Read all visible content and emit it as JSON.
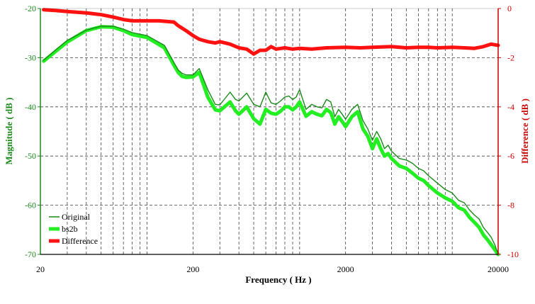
{
  "colors": {
    "original": "#1a8a1a",
    "bs2b": "#22ee22",
    "difference": "#ff1111",
    "left_axis": "#1a8a1a",
    "right_axis": "#cc0000",
    "grid": "#000000"
  },
  "chart_data": {
    "type": "line",
    "xlabel": "Frequency ( Hz )",
    "ylabel_left": "Magnitude ( dB )",
    "ylabel_right": "Difference ( dB )",
    "x_scale": "log",
    "xlim": [
      20,
      20000
    ],
    "ylim_left": [
      -70,
      -20
    ],
    "ylim_right": [
      -10,
      0
    ],
    "x_ticks": [
      "20",
      "200",
      "2000",
      "20000"
    ],
    "y_left_ticks": [
      "-20",
      "-30",
      "-40",
      "-50",
      "-60",
      "-70"
    ],
    "y_right_ticks": [
      "0",
      "-2",
      "-4",
      "-6",
      "-8",
      "-10"
    ],
    "grid": true,
    "legend_position": "bottom-left",
    "series": [
      {
        "name": "Original",
        "axis": "left",
        "x": [
          21,
          25,
          30,
          40,
          50,
          60,
          70,
          80,
          100,
          130,
          150,
          160,
          170,
          180,
          200,
          220,
          250,
          280,
          300,
          350,
          380,
          400,
          450,
          500,
          550,
          600,
          650,
          700,
          750,
          800,
          850,
          900,
          950,
          1000,
          1100,
          1200,
          1300,
          1400,
          1500,
          1600,
          1700,
          1800,
          1900,
          2000,
          2200,
          2400,
          2600,
          2800,
          3000,
          3200,
          3400,
          3600,
          3800,
          4000,
          4500,
          5000,
          5500,
          6000,
          6500,
          7000,
          8000,
          9000,
          10000,
          11000,
          12000,
          13000,
          14000,
          15000,
          16000,
          17000,
          18000,
          19000,
          20000
        ],
        "values": [
          -30.5,
          -28.5,
          -26.5,
          -24.4,
          -23.6,
          -23.6,
          -24.2,
          -24.9,
          -25.5,
          -27.5,
          -31.0,
          -32.5,
          -33.2,
          -33.5,
          -33.5,
          -32.2,
          -36.5,
          -39.5,
          -39.6,
          -37.0,
          -38.5,
          -38.8,
          -37.2,
          -39.5,
          -40.0,
          -37.0,
          -39.2,
          -39.5,
          -38.8,
          -38.0,
          -37.8,
          -38.5,
          -38.0,
          -36.5,
          -40.5,
          -39.5,
          -40.0,
          -40.2,
          -38.5,
          -39.0,
          -42.0,
          -40.5,
          -41.5,
          -42.5,
          -40.5,
          -39.5,
          -42.8,
          -44.5,
          -46.8,
          -45.0,
          -46.5,
          -48.5,
          -47.8,
          -49.0,
          -50.5,
          -50.8,
          -51.5,
          -52.5,
          -53.0,
          -54.0,
          -55.5,
          -56.8,
          -57.5,
          -59.0,
          -59.5,
          -61.0,
          -62.0,
          -62.8,
          -64.5,
          -65.5,
          -66.5,
          -68.0,
          -70.0
        ]
      },
      {
        "name": "bs2b",
        "axis": "left",
        "x": [
          21,
          25,
          30,
          40,
          50,
          60,
          70,
          80,
          100,
          130,
          150,
          160,
          170,
          180,
          200,
          220,
          250,
          280,
          300,
          350,
          380,
          400,
          450,
          500,
          550,
          600,
          650,
          700,
          750,
          800,
          850,
          900,
          950,
          1000,
          1100,
          1200,
          1300,
          1400,
          1500,
          1600,
          1700,
          1800,
          1900,
          2000,
          2200,
          2400,
          2600,
          2800,
          3000,
          3200,
          3400,
          3600,
          3800,
          4000,
          4500,
          5000,
          5500,
          6000,
          6500,
          7000,
          8000,
          9000,
          10000,
          11000,
          12000,
          13000,
          14000,
          15000,
          16000,
          17000,
          18000,
          19000,
          20000
        ],
        "values": [
          -30.7,
          -28.8,
          -26.8,
          -24.5,
          -23.7,
          -23.8,
          -24.5,
          -25.3,
          -25.9,
          -28.0,
          -31.5,
          -33.0,
          -33.8,
          -34.0,
          -33.9,
          -33.0,
          -38.0,
          -40.6,
          -40.8,
          -39.0,
          -40.8,
          -41.5,
          -40.0,
          -42.4,
          -43.5,
          -40.5,
          -41.3,
          -41.5,
          -40.9,
          -40.0,
          -40.0,
          -40.6,
          -40.0,
          -39.0,
          -41.9,
          -41.0,
          -41.5,
          -41.8,
          -40.5,
          -41.2,
          -43.5,
          -42.0,
          -43.0,
          -44.0,
          -42.0,
          -41.0,
          -44.5,
          -46.0,
          -48.5,
          -46.5,
          -48.5,
          -50.0,
          -49.5,
          -50.5,
          -52.0,
          -52.5,
          -53.5,
          -54.5,
          -55.0,
          -56.0,
          -57.5,
          -58.5,
          -59.2,
          -60.5,
          -61.0,
          -62.5,
          -63.5,
          -64.5,
          -66.0,
          -67.0,
          -68.0,
          -69.0,
          -70.0
        ]
      },
      {
        "name": "Difference",
        "axis": "right",
        "x": [
          21,
          25,
          30,
          40,
          50,
          60,
          70,
          80,
          100,
          120,
          150,
          160,
          180,
          200,
          220,
          250,
          280,
          300,
          350,
          400,
          450,
          500,
          550,
          600,
          650,
          700,
          800,
          900,
          1000,
          1200,
          1500,
          2000,
          2500,
          3000,
          4000,
          5000,
          6000,
          7000,
          8000,
          10000,
          12000,
          14000,
          16000,
          18000,
          20000
        ],
        "values": [
          -0.05,
          -0.08,
          -0.12,
          -0.18,
          -0.25,
          -0.35,
          -0.45,
          -0.5,
          -0.5,
          -0.5,
          -0.55,
          -0.7,
          -0.9,
          -1.1,
          -1.25,
          -1.35,
          -1.4,
          -1.35,
          -1.45,
          -1.6,
          -1.65,
          -1.85,
          -1.7,
          -1.7,
          -1.55,
          -1.65,
          -1.6,
          -1.65,
          -1.62,
          -1.65,
          -1.6,
          -1.58,
          -1.6,
          -1.58,
          -1.55,
          -1.6,
          -1.58,
          -1.58,
          -1.6,
          -1.58,
          -1.6,
          -1.62,
          -1.55,
          -1.45,
          -1.5
        ]
      }
    ]
  }
}
